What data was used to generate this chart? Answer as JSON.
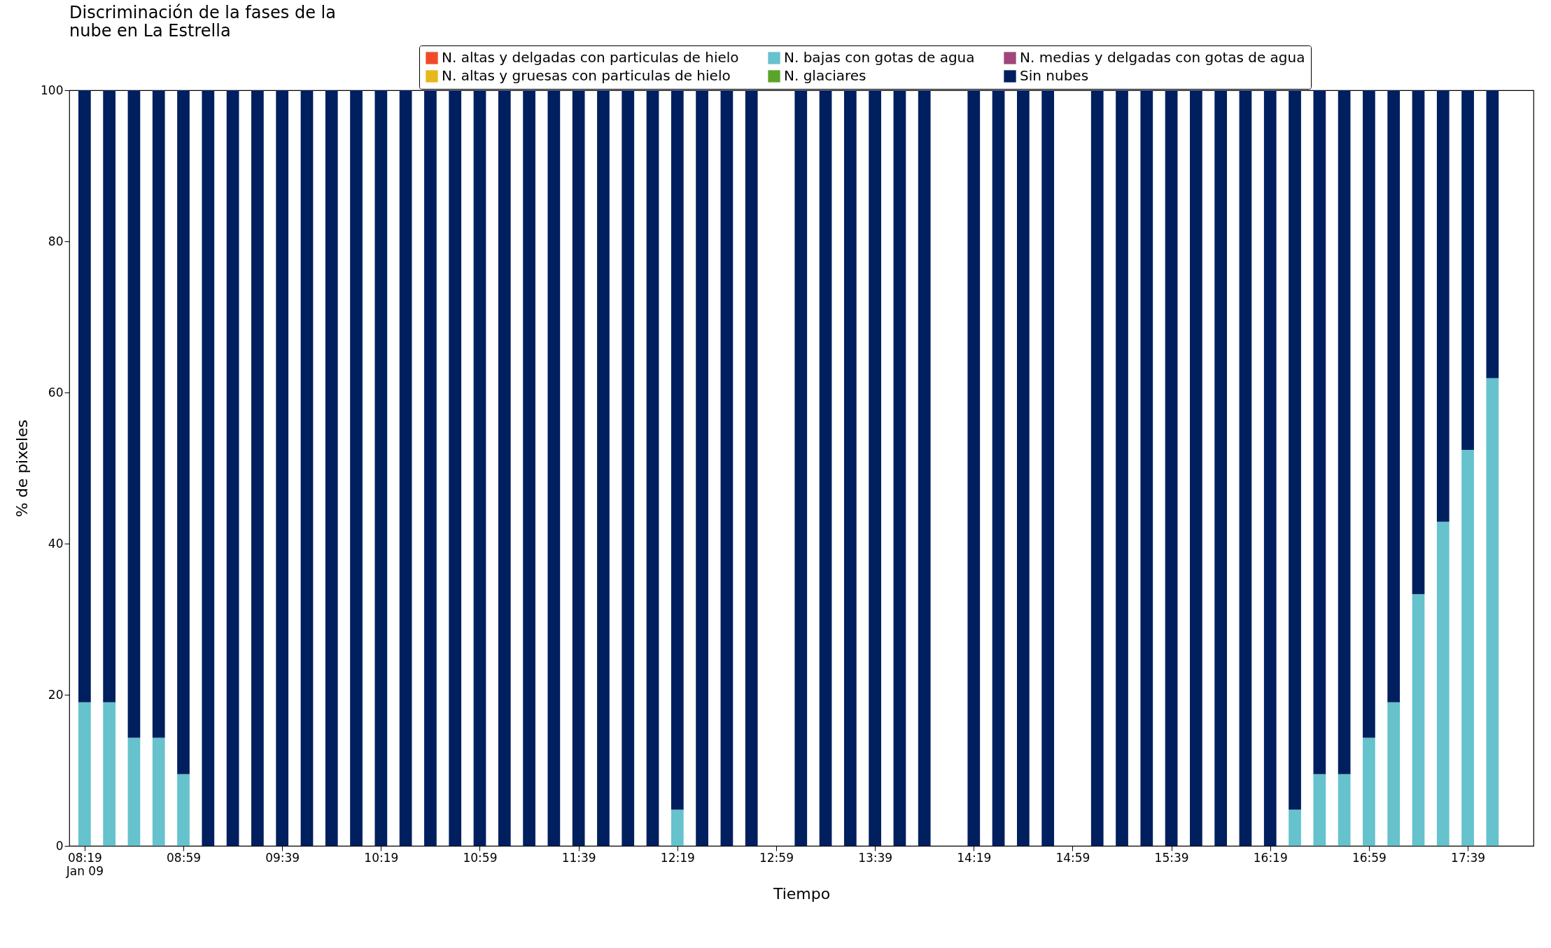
{
  "chart_data": {
    "type": "bar",
    "stacked": true,
    "title": "Discriminación de la fases de la\nnube en La Estrella",
    "xlabel": "Tiempo",
    "ylabel": "% de pixeles",
    "x": [
      8.3167,
      8.4833,
      8.65,
      8.8167,
      8.9833,
      9.15,
      9.3167,
      9.4833,
      9.65,
      9.8167,
      9.9833,
      10.15,
      10.3167,
      10.4833,
      10.65,
      10.8167,
      10.9833,
      11.15,
      11.3167,
      11.4833,
      11.65,
      11.8167,
      11.9833,
      12.15,
      12.3167,
      12.4833,
      12.65,
      12.8167,
      13.15,
      13.3167,
      13.4833,
      13.65,
      13.8167,
      13.9833,
      14.3167,
      14.4833,
      14.65,
      14.8167,
      15.15,
      15.3167,
      15.4833,
      15.65,
      15.8167,
      15.9833,
      16.15,
      16.3167,
      16.4833,
      16.65,
      16.8167,
      16.9833,
      17.15,
      17.3167,
      17.4833,
      17.65,
      17.8167
    ],
    "series": [
      {
        "name": "N. altas y delgadas con particulas de hielo",
        "color": "#f04a2a",
        "values": [
          0,
          0,
          0,
          0,
          0,
          0,
          0,
          0,
          0,
          0,
          0,
          0,
          0,
          0,
          0,
          0,
          0,
          0,
          0,
          0,
          0,
          0,
          0,
          0,
          0,
          0,
          0,
          0,
          0,
          0,
          0,
          0,
          0,
          0,
          0,
          0,
          0,
          0,
          0,
          0,
          0,
          0,
          0,
          0,
          0,
          0,
          0,
          0,
          0,
          0,
          0,
          0,
          0,
          0,
          0
        ]
      },
      {
        "name": "N. altas y gruesas con particulas de hielo",
        "color": "#e6b81b",
        "values": [
          0,
          0,
          0,
          0,
          0,
          0,
          0,
          0,
          0,
          0,
          0,
          0,
          0,
          0,
          0,
          0,
          0,
          0,
          0,
          0,
          0,
          0,
          0,
          0,
          0,
          0,
          0,
          0,
          0,
          0,
          0,
          0,
          0,
          0,
          0,
          0,
          0,
          0,
          0,
          0,
          0,
          0,
          0,
          0,
          0,
          0,
          0,
          0,
          0,
          0,
          0,
          0,
          0,
          0,
          0
        ]
      },
      {
        "name": "N. bajas con gotas de agua",
        "color": "#66c2cc",
        "values": [
          19,
          19,
          14.3,
          14.3,
          9.5,
          0,
          0,
          0,
          0,
          0,
          0,
          0,
          0,
          0,
          0,
          0,
          0,
          0,
          0,
          0,
          0,
          0,
          0,
          0,
          4.8,
          0,
          0,
          0,
          0,
          0,
          0,
          0,
          0,
          0,
          0,
          0,
          0,
          0,
          0,
          0,
          0,
          0,
          0,
          0,
          0,
          0,
          4.8,
          9.5,
          9.5,
          14.3,
          19,
          33.3,
          42.9,
          52.4,
          61.9
        ]
      },
      {
        "name": "N. glaciares",
        "color": "#5ba32b",
        "values": [
          0,
          0,
          0,
          0,
          0,
          0,
          0,
          0,
          0,
          0,
          0,
          0,
          0,
          0,
          0,
          0,
          0,
          0,
          0,
          0,
          0,
          0,
          0,
          0,
          0,
          0,
          0,
          0,
          0,
          0,
          0,
          0,
          0,
          0,
          0,
          0,
          0,
          0,
          0,
          0,
          0,
          0,
          0,
          0,
          0,
          0,
          0,
          0,
          0,
          0,
          0,
          0,
          0,
          0,
          0
        ]
      },
      {
        "name": "N. medias y delgadas con gotas de agua",
        "color": "#a0467a",
        "values": [
          0,
          0,
          0,
          0,
          0,
          0,
          0,
          0,
          0,
          0,
          0,
          0,
          0,
          0,
          0,
          0,
          0,
          0,
          0,
          0,
          0,
          0,
          0,
          0,
          0,
          0,
          0,
          0,
          0,
          0,
          0,
          0,
          0,
          0,
          0,
          0,
          0,
          0,
          0,
          0,
          0,
          0,
          0,
          0,
          0,
          0,
          0,
          0,
          0,
          0,
          0,
          0,
          0,
          0,
          0
        ]
      },
      {
        "name": "Sin nubes",
        "color": "#001f5f",
        "values": [
          81,
          81,
          85.7,
          85.7,
          90.5,
          100,
          100,
          100,
          100,
          100,
          100,
          100,
          100,
          100,
          100,
          100,
          100,
          100,
          100,
          100,
          100,
          100,
          100,
          100,
          95.2,
          100,
          100,
          100,
          100,
          100,
          100,
          100,
          100,
          100,
          100,
          100,
          100,
          100,
          100,
          100,
          100,
          100,
          100,
          100,
          100,
          100,
          95.2,
          90.5,
          90.5,
          85.7,
          81,
          66.7,
          57.1,
          47.6,
          38.1
        ]
      }
    ],
    "xlim": [
      8.237,
      18.07
    ],
    "xticks": [
      {
        "value": 8.3167,
        "label": "08:19\nJan 09"
      },
      {
        "value": 8.9833,
        "label": "08:59"
      },
      {
        "value": 9.65,
        "label": "09:39"
      },
      {
        "value": 10.3167,
        "label": "10:19"
      },
      {
        "value": 10.9833,
        "label": "10:59"
      },
      {
        "value": 11.65,
        "label": "11:39"
      },
      {
        "value": 12.3167,
        "label": "12:19"
      },
      {
        "value": 12.9833,
        "label": "12:59"
      },
      {
        "value": 13.65,
        "label": "13:39"
      },
      {
        "value": 14.3167,
        "label": "14:19"
      },
      {
        "value": 14.9833,
        "label": "14:59"
      },
      {
        "value": 15.65,
        "label": "15:39"
      },
      {
        "value": 16.3167,
        "label": "16:19"
      },
      {
        "value": 16.9833,
        "label": "16:59"
      },
      {
        "value": 17.65,
        "label": "17:39"
      }
    ],
    "ylim": [
      0,
      100
    ],
    "yticks": [
      0,
      20,
      40,
      60,
      80,
      100
    ],
    "grid": false,
    "legend": "top right"
  }
}
